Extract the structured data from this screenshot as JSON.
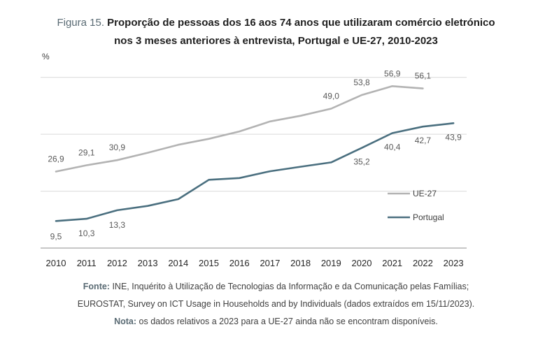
{
  "title": {
    "prefix": "Figura 15.",
    "line1": "Proporção de pessoas dos 16 aos 74 anos que utilizaram comércio eletrónico",
    "line2": "nos 3 meses anteriores à entrevista, Portugal e UE-27, 2010-2023"
  },
  "unit_label": "%",
  "source": {
    "fonte_label": "Fonte:",
    "fonte_text_1": "INE, Inquérito à Utilização de Tecnologias da Informação e da Comunicação pelas Famílias;",
    "fonte_text_2": "EUROSTAT, Survey on ICT Usage in Households and by Individuals (dados extraídos em 15/11/2023).",
    "nota_label": "Nota:",
    "nota_text": "os dados relativos a 2023 para a UE-27 ainda não se encontram disponíveis."
  },
  "chart_data": {
    "type": "line",
    "categories": [
      "2010",
      "2011",
      "2012",
      "2013",
      "2014",
      "2015",
      "2016",
      "2017",
      "2018",
      "2019",
      "2020",
      "2021",
      "2022",
      "2023"
    ],
    "ylim": [
      0,
      70
    ],
    "grid": true,
    "legend_position": "right",
    "series": [
      {
        "name": "UE-27",
        "color": "#b3b3b3",
        "values": [
          26.9,
          29.1,
          30.9,
          33.5,
          36.3,
          38.4,
          41.0,
          44.5,
          46.5,
          49.0,
          53.8,
          56.9,
          56.1,
          null
        ],
        "labels": {
          "2010": "26,9",
          "2011": "29,1",
          "2012": "30,9",
          "2019": "49,0",
          "2020": "53,8",
          "2021": "56,9",
          "2022": "56,1"
        }
      },
      {
        "name": "Portugal",
        "color": "#4a6f7f",
        "values": [
          9.5,
          10.3,
          13.3,
          14.8,
          17.2,
          24.0,
          24.6,
          27.0,
          28.6,
          30.1,
          35.2,
          40.4,
          42.7,
          43.9
        ],
        "labels": {
          "2010": "9,5",
          "2011": "10,3",
          "2012": "13,3",
          "2020": "35,2",
          "2021": "40,4",
          "2022": "42,7",
          "2023": "43,9"
        }
      }
    ]
  }
}
